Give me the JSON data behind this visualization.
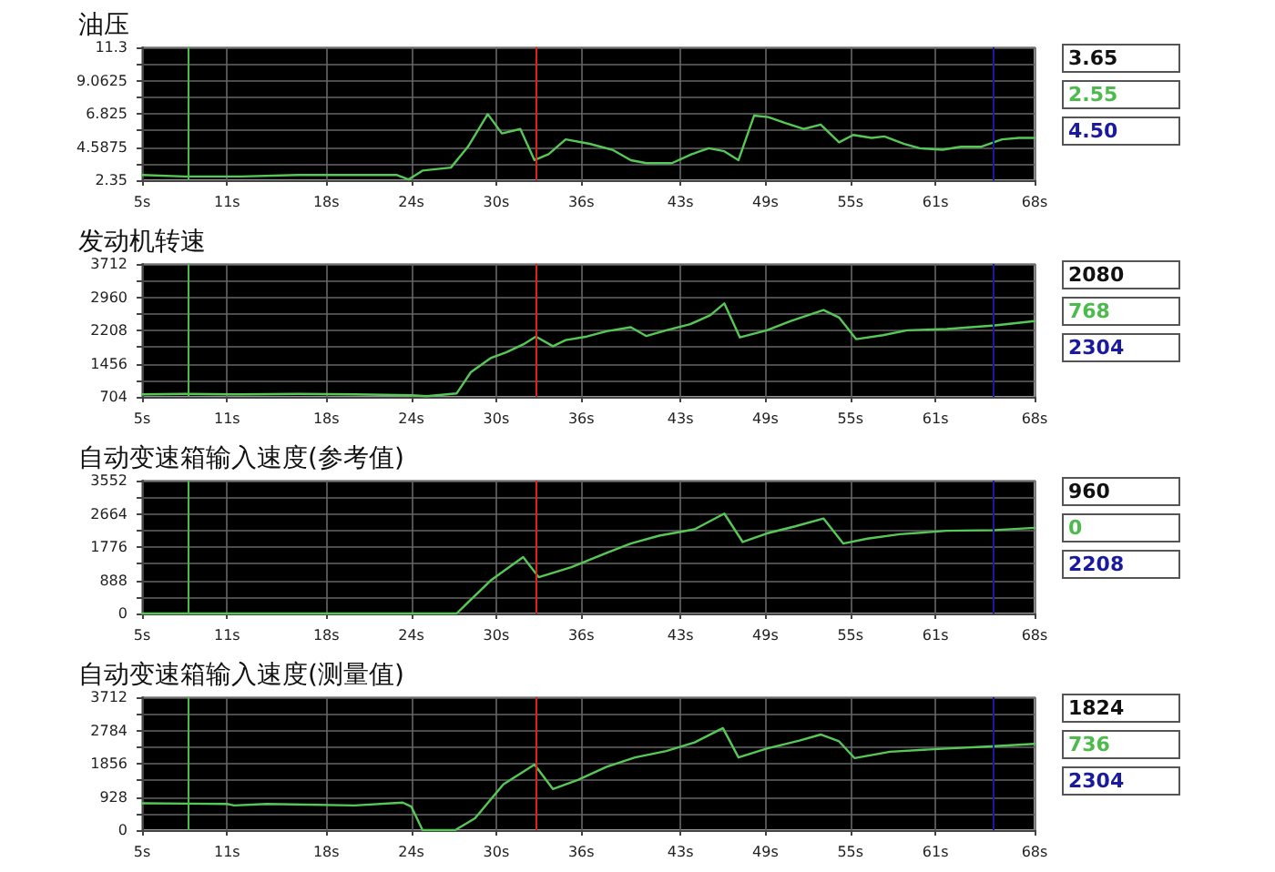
{
  "chart_data": [
    {
      "type": "line",
      "title": "油压",
      "color": "#56c856",
      "grid": true,
      "marker": "none",
      "line_style": "solid",
      "x": [
        5,
        8,
        12,
        16,
        20,
        23,
        23.8,
        24.8,
        26.8,
        28,
        29.4,
        30.4,
        31.7,
        32.7,
        33.7,
        34.9,
        36.6,
        38.2,
        39.5,
        40.6,
        42.4,
        43.8,
        45,
        46.1,
        47.1,
        48.2,
        49.2,
        50.4,
        51.7,
        52.9,
        54.2,
        55.2,
        56.5,
        57.4,
        58.8,
        59.9,
        61.5,
        62.8,
        64.2,
        65.7,
        66.9,
        68
      ],
      "values": [
        2.7,
        2.6,
        2.6,
        2.7,
        2.7,
        2.7,
        2.4,
        3.0,
        3.2,
        4.6,
        6.8,
        5.5,
        5.8,
        3.7,
        4.1,
        5.1,
        4.8,
        4.4,
        3.7,
        3.5,
        3.5,
        4.1,
        4.5,
        4.3,
        3.7,
        6.7,
        6.6,
        6.2,
        5.8,
        6.1,
        4.9,
        5.4,
        5.2,
        5.3,
        4.8,
        4.5,
        4.4,
        4.6,
        4.6,
        5.1,
        5.2,
        5.2
      ],
      "xlim": [
        5,
        68
      ],
      "xticks": [
        {
          "value": 5,
          "label": "5s"
        },
        {
          "value": 11,
          "label": "11s"
        },
        {
          "value": 18,
          "label": "18s"
        },
        {
          "value": 24,
          "label": "24s"
        },
        {
          "value": 30,
          "label": "30s"
        },
        {
          "value": 36,
          "label": "36s"
        },
        {
          "value": 43,
          "label": "43s"
        },
        {
          "value": 49,
          "label": "49s"
        },
        {
          "value": 55,
          "label": "55s"
        },
        {
          "value": 61,
          "label": "61s"
        },
        {
          "value": 68,
          "label": "68s"
        }
      ],
      "ylim": [
        2.35,
        11.3
      ],
      "yticks": [
        2.35,
        {
          "value": 3.46875,
          "label": null
        },
        4.5875,
        {
          "value": 5.70625,
          "label": null
        },
        6.825,
        {
          "value": 7.94375,
          "label": null
        },
        9.0625,
        {
          "value": 10.18125,
          "label": null
        },
        11.3
      ],
      "ref_lines": [
        {
          "axis": "x",
          "value": 32.8,
          "color": "#e02020"
        },
        {
          "axis": "x",
          "value": 8.2,
          "color": "#4cbb4c"
        },
        {
          "axis": "x",
          "value": 65.1,
          "color": "#1a1aa0"
        }
      ],
      "annotations": [
        "3.65",
        "2.55",
        "4.50"
      ]
    },
    {
      "type": "line",
      "title": "发动机转速",
      "color": "#56c856",
      "grid": true,
      "marker": "none",
      "line_style": "solid",
      "x": [
        5,
        8,
        12,
        16,
        20,
        24,
        25.1,
        27.2,
        28.2,
        29.6,
        30.7,
        31.9,
        32.8,
        34,
        34.9,
        36.4,
        37.8,
        39.5,
        40.6,
        42,
        43.7,
        45.1,
        46.1,
        47.2,
        49.1,
        50.8,
        53.1,
        54.2,
        55.4,
        57.3,
        59,
        61.8,
        65.2,
        68
      ],
      "values": [
        760,
        770,
        760,
        770,
        760,
        740,
        720,
        780,
        1260,
        1580,
        1710,
        1890,
        2070,
        1850,
        1990,
        2070,
        2190,
        2280,
        2080,
        2210,
        2350,
        2550,
        2820,
        2050,
        2210,
        2420,
        2670,
        2500,
        2010,
        2100,
        2210,
        2240,
        2320,
        2420
      ],
      "xlim": [
        5,
        68
      ],
      "xticks": [
        {
          "value": 5,
          "label": "5s"
        },
        {
          "value": 11,
          "label": "11s"
        },
        {
          "value": 18,
          "label": "18s"
        },
        {
          "value": 24,
          "label": "24s"
        },
        {
          "value": 30,
          "label": "30s"
        },
        {
          "value": 36,
          "label": "36s"
        },
        {
          "value": 43,
          "label": "43s"
        },
        {
          "value": 49,
          "label": "49s"
        },
        {
          "value": 55,
          "label": "55s"
        },
        {
          "value": 61,
          "label": "61s"
        },
        {
          "value": 68,
          "label": "68s"
        }
      ],
      "ylim": [
        704,
        3712
      ],
      "yticks": [
        704,
        {
          "value": 1080,
          "label": null
        },
        1456,
        {
          "value": 1832,
          "label": null
        },
        2208,
        {
          "value": 2584,
          "label": null
        },
        2960,
        {
          "value": 3336,
          "label": null
        },
        3712
      ],
      "ref_lines": [
        {
          "axis": "x",
          "value": 32.8,
          "color": "#e02020"
        },
        {
          "axis": "x",
          "value": 8.2,
          "color": "#4cbb4c"
        },
        {
          "axis": "x",
          "value": 65.1,
          "color": "#1a1aa0"
        }
      ],
      "annotations": [
        "2080",
        "768",
        "2304"
      ]
    },
    {
      "type": "line",
      "title": "自动变速箱输入速度(参考值)",
      "color": "#56c856",
      "grid": true,
      "marker": "none",
      "line_style": "solid",
      "x": [
        5,
        27.2,
        29.6,
        31.9,
        33,
        35.3,
        37.8,
        39.5,
        41.5,
        44,
        46.1,
        47.4,
        49.1,
        51.1,
        53.1,
        54.5,
        56.2,
        58.5,
        61.8,
        65.2,
        68
      ],
      "values": [
        0,
        0,
        880,
        1510,
        970,
        1240,
        1620,
        1870,
        2080,
        2250,
        2670,
        1910,
        2140,
        2330,
        2540,
        1870,
        2000,
        2120,
        2210,
        2230,
        2290
      ],
      "xlim": [
        5,
        68
      ],
      "xticks": [
        {
          "value": 5,
          "label": "5s"
        },
        {
          "value": 11,
          "label": "11s"
        },
        {
          "value": 18,
          "label": "18s"
        },
        {
          "value": 24,
          "label": "24s"
        },
        {
          "value": 30,
          "label": "30s"
        },
        {
          "value": 36,
          "label": "36s"
        },
        {
          "value": 43,
          "label": "43s"
        },
        {
          "value": 49,
          "label": "49s"
        },
        {
          "value": 55,
          "label": "55s"
        },
        {
          "value": 61,
          "label": "61s"
        },
        {
          "value": 68,
          "label": "68s"
        }
      ],
      "ylim": [
        0,
        3552
      ],
      "yticks": [
        0,
        {
          "value": 444,
          "label": null
        },
        888,
        {
          "value": 1332,
          "label": null
        },
        1776,
        {
          "value": 2220,
          "label": null
        },
        2664,
        {
          "value": 3108,
          "label": null
        },
        3552
      ],
      "ref_lines": [
        {
          "axis": "x",
          "value": 32.8,
          "color": "#e02020"
        },
        {
          "axis": "x",
          "value": 8.2,
          "color": "#4cbb4c"
        },
        {
          "axis": "x",
          "value": 65.1,
          "color": "#1a1aa0"
        }
      ],
      "annotations": [
        "960",
        "0",
        "2208"
      ]
    },
    {
      "type": "line",
      "title": "自动变速箱输入速度(测量值)",
      "color": "#56c856",
      "grid": true,
      "marker": "none",
      "line_style": "solid",
      "x": [
        5,
        8.2,
        11,
        11.5,
        13.8,
        20,
        23.4,
        24,
        24.8,
        27.1,
        28.5,
        30.5,
        32.7,
        34,
        35.8,
        37.8,
        39.8,
        42,
        44,
        46,
        47.1,
        49.1,
        51.4,
        52.9,
        54.2,
        55.3,
        57.8,
        61.8,
        64.9,
        68
      ],
      "values": [
        750,
        740,
        730,
        690,
        730,
        690,
        770,
        660,
        0,
        0,
        330,
        1280,
        1830,
        1150,
        1410,
        1770,
        2030,
        2210,
        2450,
        2850,
        2030,
        2280,
        2500,
        2670,
        2480,
        2010,
        2190,
        2280,
        2340,
        2410
      ],
      "xlim": [
        5,
        68
      ],
      "xticks": [
        {
          "value": 5,
          "label": "5s"
        },
        {
          "value": 11,
          "label": "11s"
        },
        {
          "value": 18,
          "label": "18s"
        },
        {
          "value": 24,
          "label": "24s"
        },
        {
          "value": 30,
          "label": "30s"
        },
        {
          "value": 36,
          "label": "36s"
        },
        {
          "value": 43,
          "label": "43s"
        },
        {
          "value": 49,
          "label": "49s"
        },
        {
          "value": 55,
          "label": "55s"
        },
        {
          "value": 61,
          "label": "61s"
        },
        {
          "value": 68,
          "label": "68s"
        }
      ],
      "ylim": [
        0,
        3712
      ],
      "yticks": [
        0,
        {
          "value": 464,
          "label": null
        },
        928,
        {
          "value": 1392,
          "label": null
        },
        1856,
        {
          "value": 2320,
          "label": null
        },
        2784,
        {
          "value": 3248,
          "label": null
        },
        3712
      ],
      "ref_lines": [
        {
          "axis": "x",
          "value": 32.8,
          "color": "#e02020"
        },
        {
          "axis": "x",
          "value": 8.2,
          "color": "#4cbb4c"
        },
        {
          "axis": "x",
          "value": 65.1,
          "color": "#1a1aa0"
        }
      ],
      "annotations": [
        "1824",
        "736",
        "2304"
      ]
    }
  ]
}
